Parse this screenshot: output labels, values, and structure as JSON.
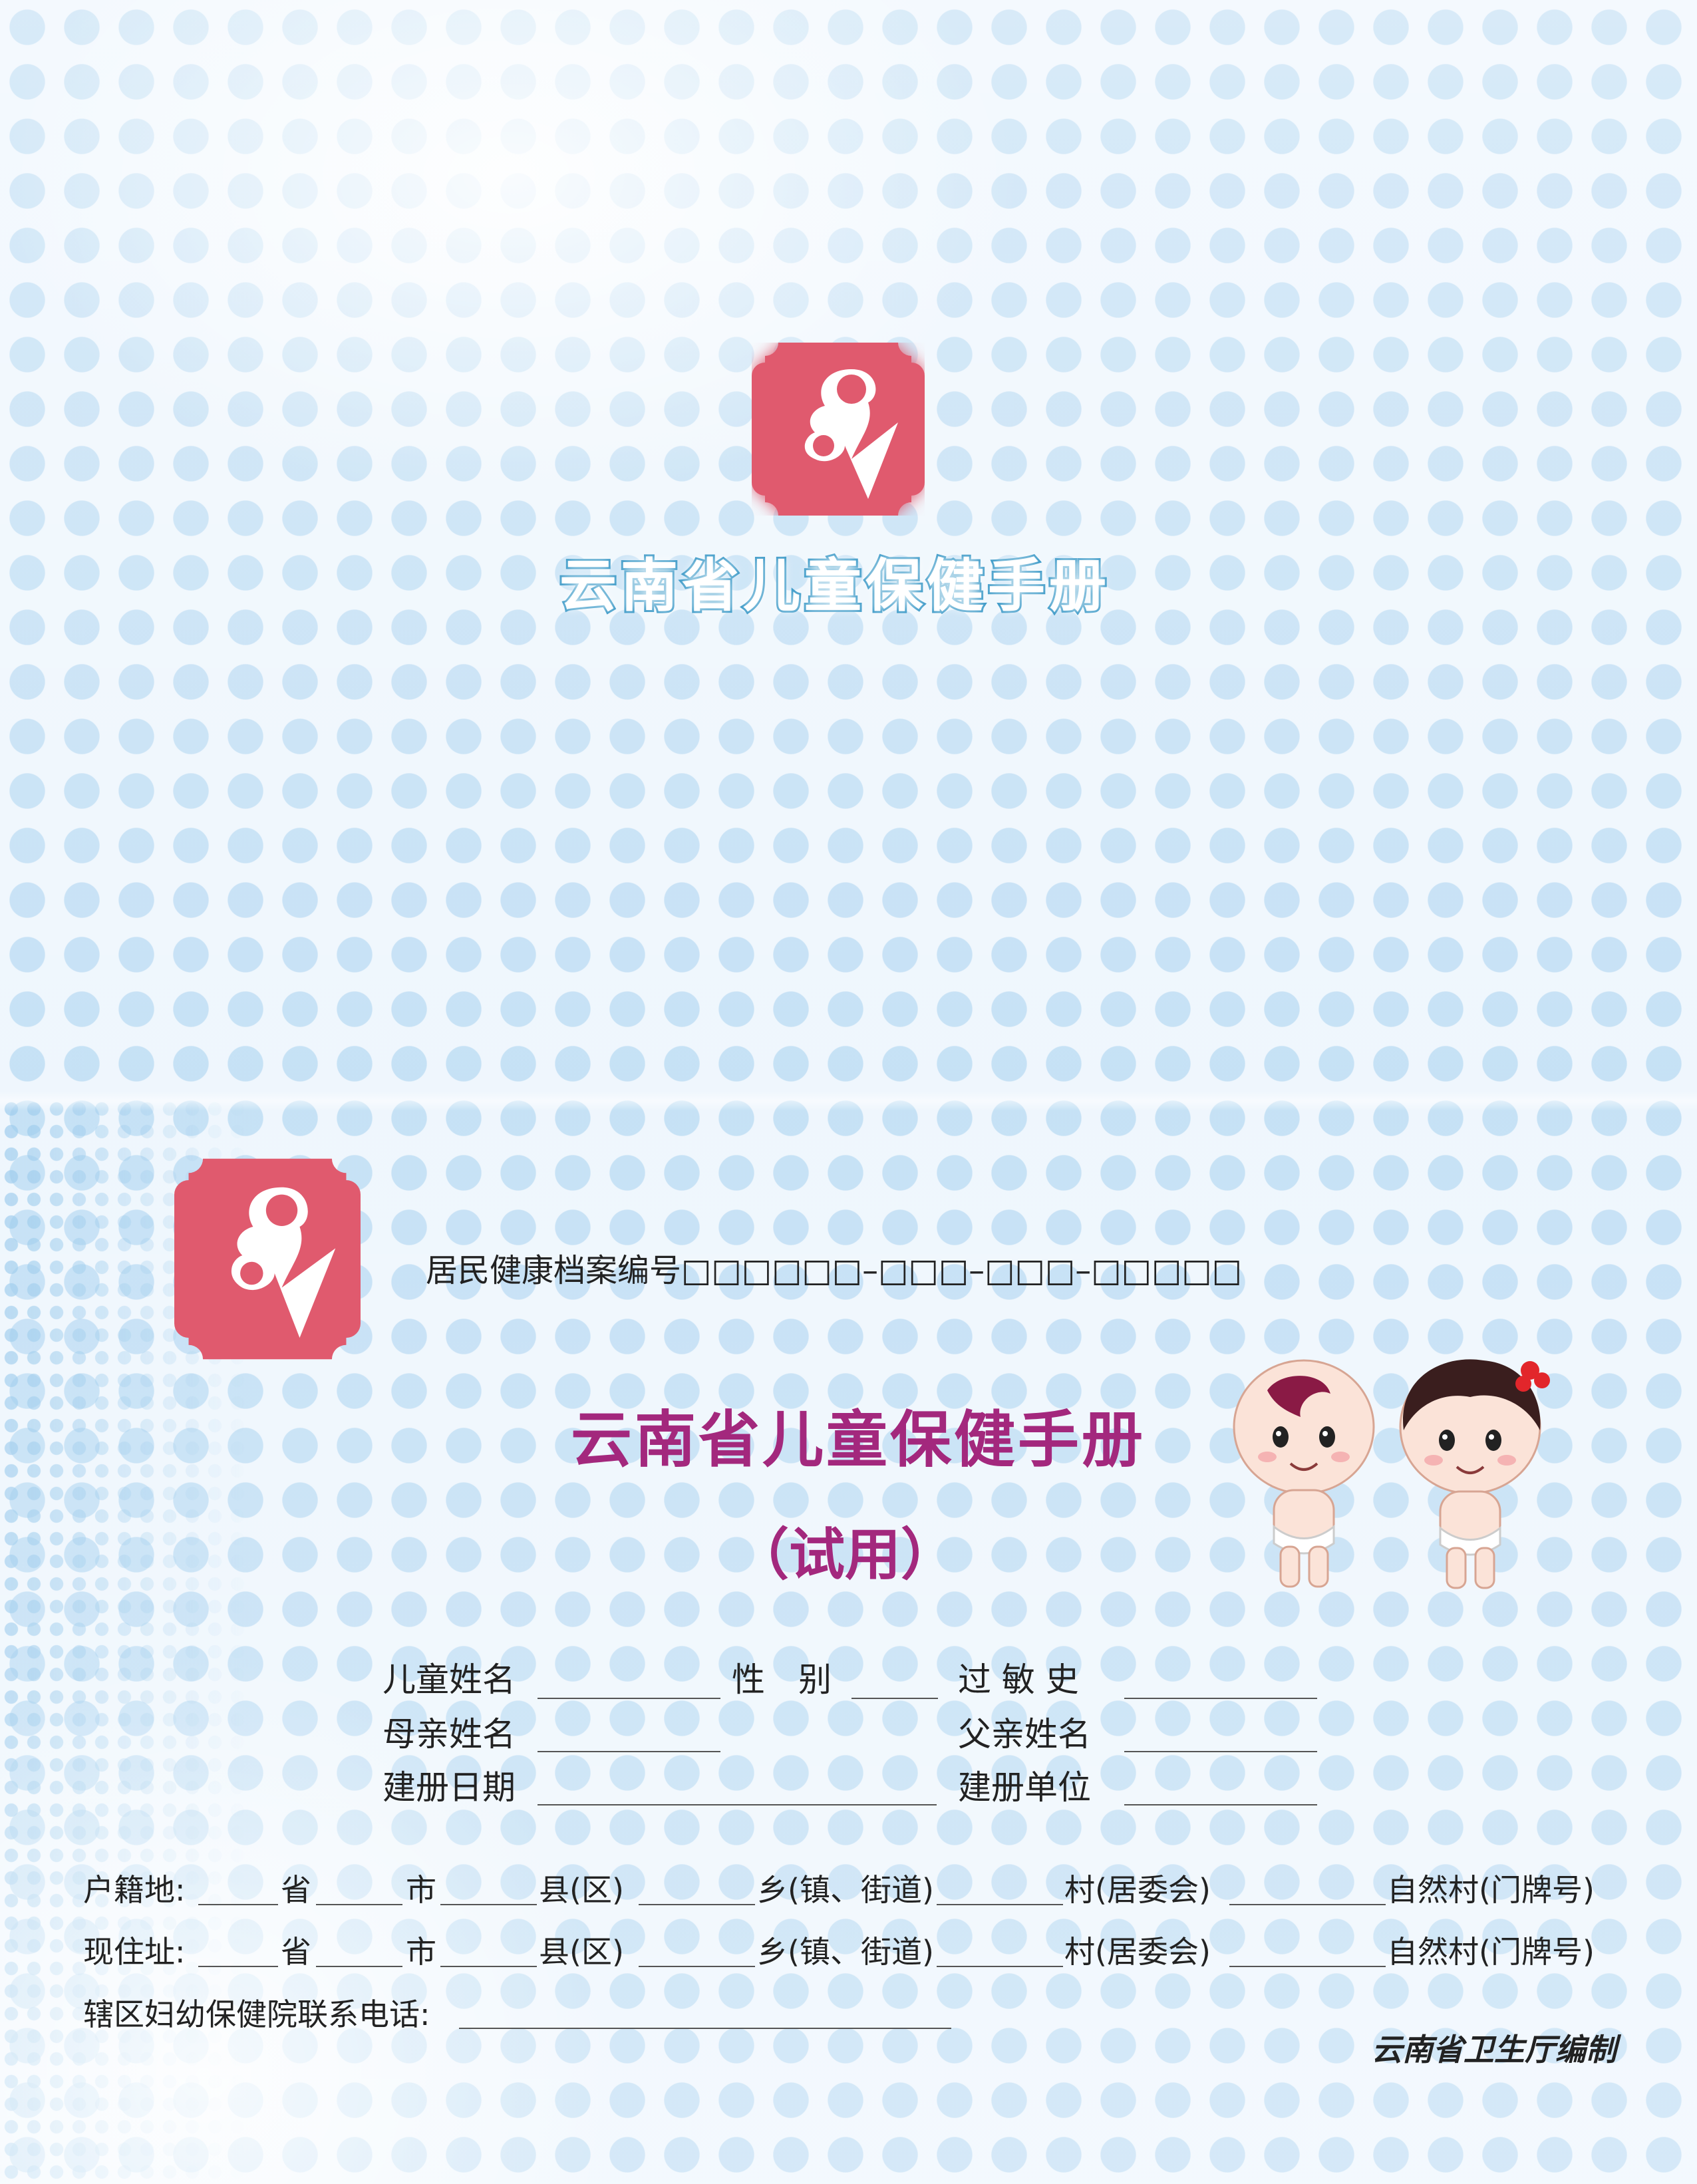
{
  "header": {
    "title": "云南省儿童保健手册"
  },
  "archive": {
    "label": "居民健康档案编号",
    "boxes": "□□□□□□–□□□–□□□–□□□□□"
  },
  "main": {
    "title": "云南省儿童保健手册",
    "subtitle": "（试用）"
  },
  "form": {
    "child_name": "儿童姓名",
    "sex": "性　别",
    "allergy": "过 敏 史",
    "mother_name": "母亲姓名",
    "father_name": "父亲姓名",
    "register_date": "建册日期",
    "register_unit": "建册单位"
  },
  "address": {
    "household_label": "户籍地:",
    "current_label": "现住址:",
    "province": "省",
    "city": "市",
    "county": "县(区)",
    "town": "乡(镇、街道)",
    "village": "村(居委会)",
    "natural_village": "自然村(门牌号)",
    "phone_label": "辖区妇幼保健院联系电话:"
  },
  "footer": {
    "publisher": "云南省卫生厅编制"
  },
  "colors": {
    "brand_pink": "#e05a6e",
    "title_purple": "#a3287d",
    "title_blue": "#2f93c4",
    "dot_blue": "#a0cdee"
  }
}
